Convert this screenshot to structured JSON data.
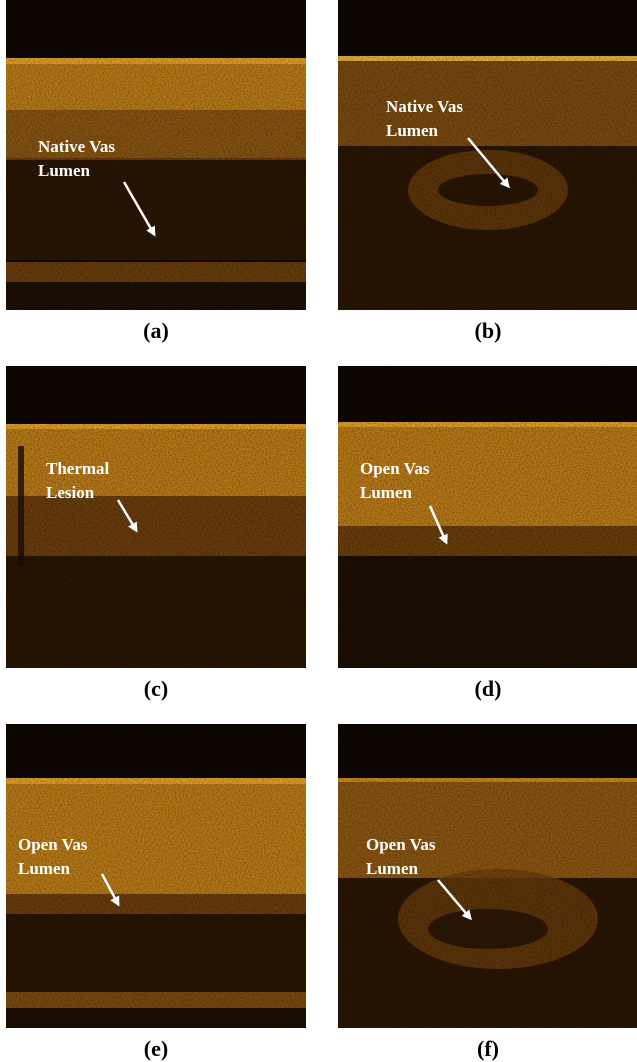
{
  "panels": [
    {
      "caption": "(a)",
      "label_line1": "Native Vas",
      "label_line2": "Lumen"
    },
    {
      "caption": "(b)",
      "label_line1": "Native Vas",
      "label_line2": "Lumen"
    },
    {
      "caption": "(c)",
      "label_line1": "Thermal",
      "label_line2": "Lesion"
    },
    {
      "caption": "(d)",
      "label_line1": "Open Vas",
      "label_line2": "Lumen"
    },
    {
      "caption": "(e)",
      "label_line1": "Open Vas",
      "label_line2": "Lumen"
    },
    {
      "caption": "(f)",
      "label_line1": "Open Vas",
      "label_line2": "Lumen"
    }
  ],
  "colors": {
    "background": "#0f0700",
    "tissue_bright": "#c98a1a",
    "tissue_mid": "#7a4a10",
    "tissue_dark": "#2a1604",
    "annotation": "#ffffff"
  }
}
